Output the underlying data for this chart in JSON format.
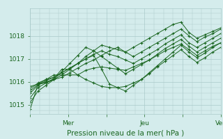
{
  "title": "",
  "xlabel": "Pression niveau de la mer( hPa )",
  "ylabel": "",
  "bg_color": "#d4ecec",
  "plot_bg_color": "#d4ecec",
  "grid_color": "#aacaca",
  "line_color": "#1a6620",
  "marker_color": "#1a6620",
  "tick_color": "#1a6620",
  "label_color": "#1a6620",
  "ylim": [
    1014.6,
    1019.2
  ],
  "yticks": [
    1015,
    1016,
    1017,
    1018
  ],
  "xtick_labels": [
    "",
    "Mer",
    "",
    "Jeu",
    "",
    "Ven"
  ],
  "xtick_positions": [
    0,
    48,
    96,
    144,
    192,
    240
  ],
  "total_hours": 240,
  "lines": [
    [
      1014.8,
      1015.9,
      1015.95,
      1016.1,
      1016.3,
      1016.55,
      1016.8,
      1017.1,
      1017.35,
      1017.6,
      1017.5,
      1017.4,
      1017.3,
      1017.5,
      1017.7,
      1017.9,
      1018.1,
      1018.3,
      1018.5,
      1018.6,
      1018.15,
      1017.9,
      1018.05,
      1018.2,
      1018.35
    ],
    [
      1015.7,
      1015.95,
      1016.1,
      1016.2,
      1016.4,
      1016.6,
      1016.8,
      1017.0,
      1017.2,
      1017.35,
      1017.2,
      1017.1,
      1016.95,
      1016.8,
      1017.0,
      1017.2,
      1017.4,
      1017.65,
      1017.85,
      1018.05,
      1017.7,
      1017.5,
      1017.7,
      1017.9,
      1018.1
    ],
    [
      1015.5,
      1015.85,
      1016.05,
      1016.2,
      1016.4,
      1016.6,
      1016.8,
      1017.0,
      1017.15,
      1016.55,
      1015.9,
      1015.75,
      1015.6,
      1015.85,
      1016.1,
      1016.4,
      1016.7,
      1017.0,
      1017.3,
      1017.6,
      1017.3,
      1017.05,
      1017.25,
      1017.5,
      1017.7
    ],
    [
      1015.6,
      1015.9,
      1016.1,
      1016.3,
      1016.3,
      1016.3,
      1016.3,
      1016.5,
      1016.6,
      1016.65,
      1016.6,
      1016.55,
      1016.5,
      1016.65,
      1016.8,
      1016.95,
      1017.15,
      1017.35,
      1017.5,
      1017.65,
      1017.4,
      1017.15,
      1017.35,
      1017.55,
      1017.7
    ],
    [
      1015.3,
      1015.75,
      1015.95,
      1016.15,
      1016.55,
      1016.55,
      1016.3,
      1016.1,
      1015.95,
      1015.8,
      1015.75,
      1015.75,
      1015.8,
      1015.95,
      1016.1,
      1016.35,
      1016.65,
      1016.9,
      1017.15,
      1017.4,
      1017.1,
      1016.85,
      1017.05,
      1017.3,
      1017.5
    ],
    [
      1015.8,
      1015.9,
      1016.0,
      1016.1,
      1016.2,
      1016.4,
      1016.6,
      1016.8,
      1016.95,
      1017.15,
      1017.35,
      1017.5,
      1017.3,
      1017.1,
      1017.3,
      1017.5,
      1017.7,
      1017.9,
      1018.1,
      1018.3,
      1018.0,
      1017.75,
      1017.95,
      1018.1,
      1018.3
    ],
    [
      1015.1,
      1015.6,
      1015.85,
      1016.1,
      1016.45,
      1016.8,
      1017.15,
      1017.5,
      1017.35,
      1017.1,
      1016.85,
      1016.6,
      1016.35,
      1016.55,
      1016.75,
      1016.95,
      1017.2,
      1017.45,
      1017.65,
      1017.85,
      1017.55,
      1017.3,
      1017.5,
      1017.7,
      1017.9
    ]
  ]
}
